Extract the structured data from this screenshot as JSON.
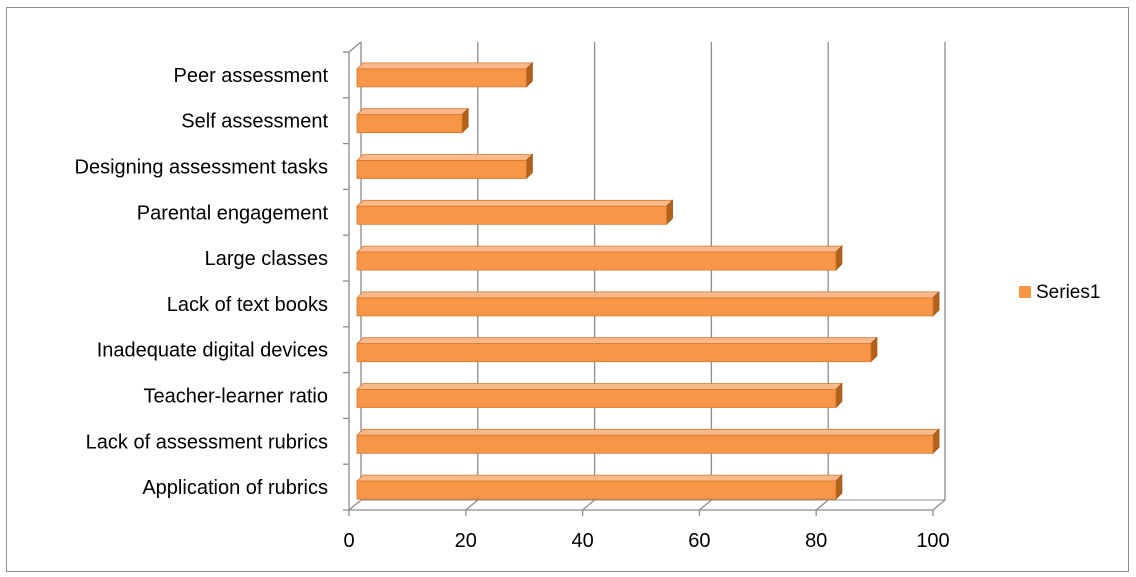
{
  "chart_data": {
    "type": "bar",
    "orientation": "horizontal",
    "style": "3d",
    "categories": [
      "Application of rubrics",
      "Lack of assessment rubrics",
      "Teacher-learner ratio",
      "Inadequate digital devices",
      "Lack of text books",
      "Large classes",
      "Parental engagement",
      "Designing assessment tasks",
      "Self assessment",
      "Peer assessment"
    ],
    "series": [
      {
        "name": "Series1",
        "color": "#F79646",
        "values": [
          82,
          100,
          82,
          88,
          100,
          82,
          53,
          29,
          18,
          29
        ]
      }
    ],
    "xlim": [
      0,
      100
    ],
    "xticks": [
      0,
      20,
      40,
      60,
      80,
      100
    ],
    "grid": true,
    "legend": "right"
  }
}
